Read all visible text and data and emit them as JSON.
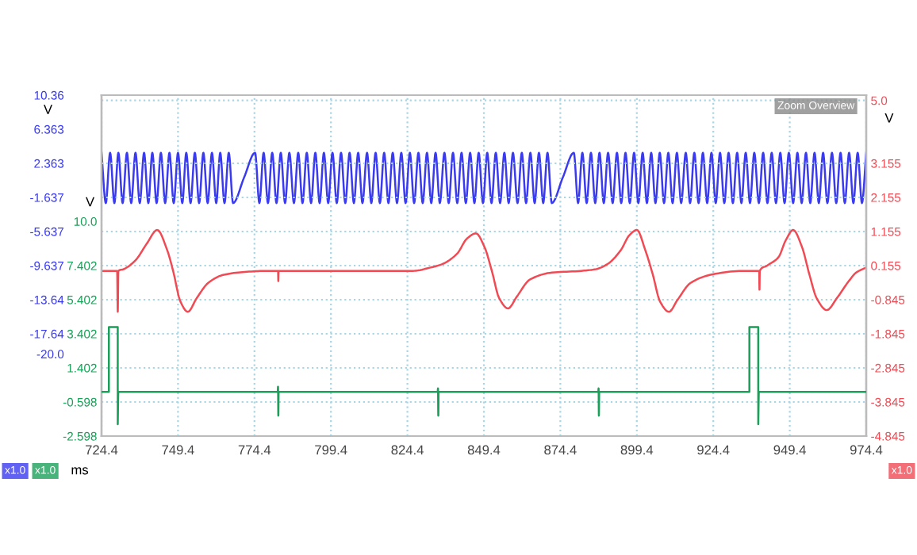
{
  "chart_data": {
    "type": "line",
    "xlabel": "ms",
    "ylabel": "V",
    "y2label": "V",
    "y3label": "V",
    "annotations": [
      "x1.0",
      "x1.0",
      "x1.0",
      "Zoom Overview"
    ],
    "xlim": [
      724.4,
      974.4
    ],
    "xticks": [
      724.4,
      749.4,
      774.4,
      799.4,
      824.4,
      849.4,
      874.4,
      899.4,
      924.4,
      949.4,
      974.4
    ],
    "ylim": [
      -29.637,
      10.363
    ],
    "yticks": [
      {
        "value": 10.363,
        "label": "10.36"
      },
      6.363,
      2.363,
      -1.637,
      -5.637,
      -9.637,
      {
        "value": -13.637,
        "label": "-13.64"
      },
      {
        "value": -17.637,
        "label": "-17.64"
      },
      {
        "value": -20.0,
        "label": "-20.0"
      }
    ],
    "y2lim": [
      -4.845,
      5.155
    ],
    "y2ticks": [
      {
        "value": 5.0,
        "label": "5.0"
      },
      3.155,
      2.155,
      1.155,
      0.155,
      -0.845,
      -1.845,
      -2.845,
      -3.845,
      -4.845
    ],
    "y3lim": [
      -2.598,
      17.402
    ],
    "y3ticks": [
      {
        "value": 10.0,
        "label": "10.0"
      },
      7.402,
      5.402,
      3.402,
      1.402,
      -0.598,
      -2.598
    ],
    "grid": true,
    "series": [
      {
        "color": "#3a3af0",
        "axis": "y",
        "x": [
          724.4,
          725.8,
          727.2,
          728.6,
          729.9,
          731.3,
          732.7,
          734.1,
          735.5,
          736.9,
          738.3,
          739.7,
          741.0,
          742.4,
          743.8,
          745.2,
          746.6,
          748.0,
          749.4,
          750.8,
          752.1,
          753.5,
          754.9,
          756.3,
          757.7,
          759.1,
          760.5,
          761.9,
          763.2,
          764.6,
          766.0,
          767.4,
          771.0,
          774.6,
          776.0,
          777.4,
          778.8,
          780.2,
          781.6,
          783.0,
          784.4,
          785.8,
          787.3,
          788.7,
          790.1,
          791.5,
          792.9,
          794.3,
          795.7,
          797.1,
          798.5,
          799.9,
          801.3,
          802.7,
          804.1,
          805.5,
          806.9,
          808.3,
          809.7,
          811.2,
          812.6,
          814.0,
          815.4,
          816.8,
          818.2,
          819.6,
          821.0,
          822.4,
          823.8,
          825.2,
          826.6,
          828.0,
          829.4,
          830.8,
          832.2,
          833.6,
          835.0,
          836.5,
          837.9,
          839.3,
          840.7,
          842.1,
          843.5,
          844.9,
          846.3,
          847.7,
          849.1,
          850.5,
          851.9,
          853.3,
          854.7,
          856.1,
          857.5,
          858.9,
          860.4,
          861.8,
          863.2,
          864.6,
          866.0,
          867.4,
          868.8,
          870.2,
          871.6,
          875.2,
          878.8,
          880.2,
          881.6,
          883.0,
          884.4,
          885.8,
          887.2,
          888.6,
          890.0,
          891.5,
          892.9,
          894.3,
          895.7,
          897.1,
          898.5,
          899.9,
          901.3,
          902.7,
          904.1,
          905.5,
          906.9,
          908.3,
          909.7,
          911.1,
          912.5,
          913.9,
          915.4,
          916.8,
          918.2,
          919.6,
          921.0,
          922.4,
          923.8,
          925.2,
          926.6,
          928.0,
          929.4,
          930.8,
          932.2,
          933.6,
          935.0,
          936.4,
          937.8,
          939.3,
          940.7,
          942.1,
          943.5,
          944.9,
          946.3,
          947.7,
          949.1,
          950.5,
          951.9,
          953.3,
          954.7,
          956.1,
          957.5,
          958.9,
          960.3,
          961.7,
          963.2,
          964.6,
          966.0,
          967.4,
          968.8,
          970.2,
          971.6,
          973.0,
          974.4
        ],
        "values": [
          3.6,
          -2.3,
          3.6,
          -2.3,
          3.6,
          -2.3,
          3.6,
          -2.3,
          3.6,
          -2.3,
          3.6,
          -2.3,
          3.6,
          -2.3,
          3.6,
          -2.3,
          3.6,
          -2.3,
          3.6,
          -2.3,
          3.6,
          -2.3,
          3.6,
          -2.3,
          3.6,
          -2.3,
          3.6,
          -2.3,
          3.6,
          -2.3,
          3.6,
          -2.3,
          0.7,
          3.6,
          -2.3,
          3.6,
          -2.3,
          3.6,
          -2.3,
          3.6,
          -2.3,
          3.6,
          -2.3,
          3.6,
          -2.3,
          3.6,
          -2.3,
          3.6,
          -2.3,
          3.6,
          -2.3,
          3.6,
          -2.3,
          3.6,
          -2.3,
          3.6,
          -2.3,
          3.6,
          -2.3,
          3.6,
          -2.3,
          3.6,
          -2.3,
          3.6,
          -2.3,
          3.6,
          -2.3,
          3.6,
          -2.3,
          3.6,
          -2.3,
          3.6,
          -2.3,
          3.6,
          -2.3,
          3.6,
          -2.3,
          3.6,
          -2.3,
          3.6,
          -2.3,
          3.6,
          -2.3,
          3.6,
          -2.3,
          3.6,
          -2.3,
          3.6,
          -2.3,
          3.6,
          -2.3,
          3.6,
          -2.3,
          3.6,
          -2.3,
          3.6,
          -2.3,
          3.6,
          -2.3,
          3.6,
          -2.3,
          3.6,
          -2.3,
          0.7,
          3.6,
          -2.3,
          3.6,
          -2.3,
          3.6,
          -2.3,
          3.6,
          -2.3,
          3.6,
          -2.3,
          3.6,
          -2.3,
          3.6,
          -2.3,
          3.6,
          -2.3,
          3.6,
          -2.3,
          3.6,
          -2.3,
          3.6,
          -2.3,
          3.6,
          -2.3,
          3.6,
          -2.3,
          3.6,
          -2.3,
          3.6,
          -2.3,
          3.6,
          -2.3,
          3.6,
          -2.3,
          3.6,
          -2.3,
          3.6,
          -2.3,
          3.6,
          -2.3,
          3.6,
          -2.3,
          3.6,
          -2.3,
          3.6,
          -2.3,
          3.6,
          -2.3,
          3.6,
          -2.3,
          3.6,
          -2.3,
          3.6,
          -2.3,
          3.6,
          -2.3,
          3.6,
          -2.3,
          3.6,
          -2.3,
          3.6,
          -2.3,
          3.6,
          -2.3,
          3.6,
          -2.3,
          3.6,
          -2.3,
          3.6
        ]
      },
      {
        "color": "#f04b55",
        "axis": "y2",
        "x": [
          724.4,
          729.5,
          729.7,
          729.9,
          731.6,
          735.4,
          739.2,
          742.6,
          745.9,
          747.8,
          750.2,
          752.6,
          755.5,
          759.3,
          764.1,
          771.2,
          778.4,
          782.1,
          782.2,
          782.3,
          826.2,
          832.0,
          835.8,
          840.6,
          843.9,
          846.8,
          849.6,
          852.0,
          854.4,
          857.3,
          860.2,
          864.5,
          871.6,
          881.2,
          886.0,
          889.8,
          894.1,
          897.0,
          899.4,
          902.2,
          904.6,
          907.0,
          909.9,
          912.7,
          917.0,
          924.2,
          933.8,
          939.4,
          939.5,
          939.6,
          941.9,
          945.7,
          948.1,
          950.5,
          953.4,
          955.8,
          958.2,
          961.5,
          964.8,
          968.7,
          971.1,
          974.4
        ],
        "values": [
          0.0,
          0.0,
          -1.2,
          0.0,
          0.05,
          0.3,
          0.8,
          1.2,
          0.6,
          0.0,
          -0.9,
          -1.2,
          -0.8,
          -0.35,
          -0.12,
          -0.03,
          0.0,
          0.0,
          -0.3,
          0.0,
          0.0,
          0.1,
          0.2,
          0.5,
          0.95,
          1.1,
          0.7,
          0.0,
          -0.8,
          -1.1,
          -0.75,
          -0.25,
          -0.05,
          0.0,
          0.05,
          0.2,
          0.6,
          1.05,
          1.2,
          0.6,
          -0.1,
          -0.9,
          -1.2,
          -0.85,
          -0.35,
          -0.1,
          0.0,
          0.0,
          -0.55,
          0.0,
          0.15,
          0.4,
          0.9,
          1.2,
          0.7,
          -0.1,
          -0.8,
          -1.15,
          -0.8,
          -0.3,
          -0.05,
          0.1
        ]
      },
      {
        "color": "#1aa05a",
        "axis": "y3",
        "x": [
          724.4,
          726.8,
          726.8,
          729.5,
          729.7,
          729.7,
          729.9,
          782.0,
          782.1,
          782.2,
          782.3,
          834.3,
          834.4,
          834.5,
          834.6,
          886.8,
          886.9,
          887.0,
          887.1,
          936.2,
          936.2,
          939.1,
          939.1,
          939.3,
          974.4
        ],
        "values": [
          0.0,
          0.0,
          3.8,
          3.8,
          3.8,
          -1.9,
          0.0,
          0.0,
          0.3,
          -1.4,
          0.0,
          0.0,
          0.2,
          -1.4,
          0.0,
          0.0,
          0.2,
          -1.4,
          0.0,
          0.0,
          3.8,
          3.8,
          -1.9,
          0.0,
          0.0
        ]
      }
    ]
  }
}
